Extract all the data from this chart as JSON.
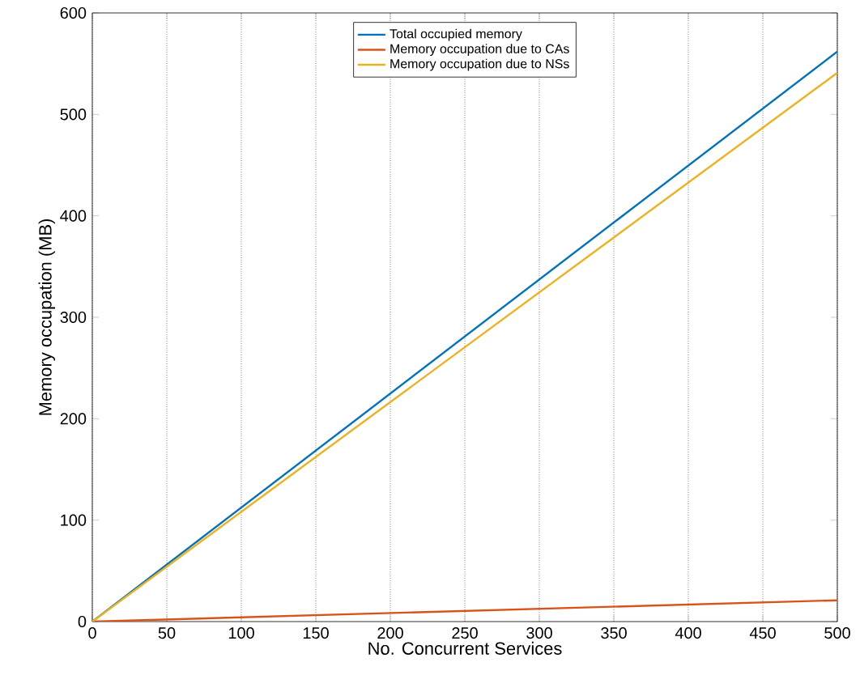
{
  "chart_data": {
    "type": "line",
    "xlabel": "No. Concurrent Services",
    "ylabel": "Memory occupation (MB)",
    "x": [
      0,
      500
    ],
    "series": [
      {
        "name": "Total occupied memory",
        "color": "#0072bd",
        "values": [
          0,
          562
        ]
      },
      {
        "name": "Memory occupation due to CAs",
        "color": "#d95319",
        "values": [
          0,
          21
        ]
      },
      {
        "name": "Memory occupation due to NSs",
        "color": "#edb120",
        "values": [
          0,
          541
        ]
      }
    ],
    "xlim": [
      0,
      500
    ],
    "ylim": [
      0,
      600
    ],
    "xticks": [
      0,
      50,
      100,
      150,
      200,
      250,
      300,
      350,
      400,
      450,
      500
    ],
    "yticks": [
      0,
      100,
      200,
      300,
      400,
      500,
      600
    ],
    "grid": "x",
    "legend": "top"
  }
}
